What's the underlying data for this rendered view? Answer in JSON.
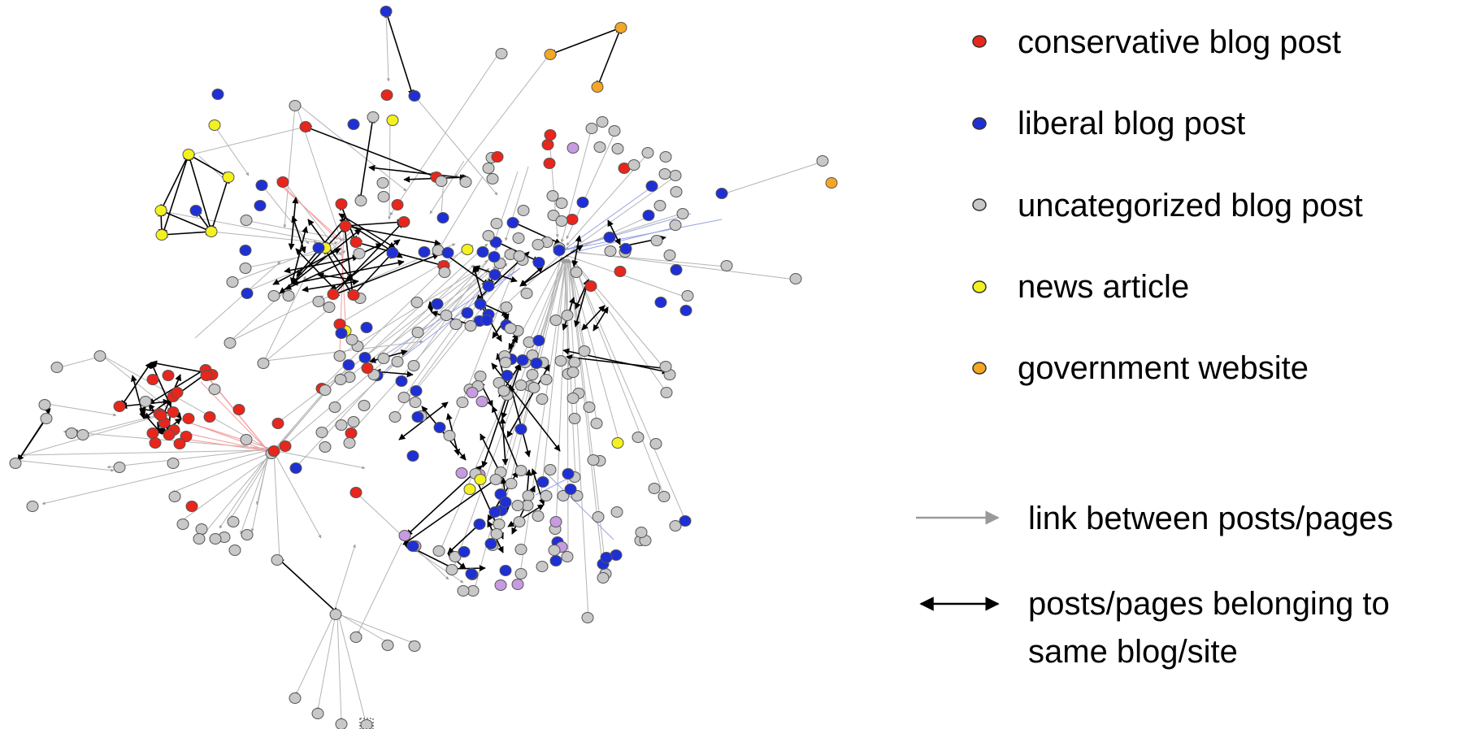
{
  "legend": {
    "node_types": [
      {
        "id": "conservative",
        "label": "conservative blog post",
        "color": "#e8261c"
      },
      {
        "id": "liberal",
        "label": "liberal blog post",
        "color": "#1f2fd6"
      },
      {
        "id": "uncategorized",
        "label": "uncategorized blog post",
        "color": "#c8c8c8"
      },
      {
        "id": "news",
        "label": "news article",
        "color": "#f4f21e"
      },
      {
        "id": "government",
        "label": "government website",
        "color": "#f5a623"
      }
    ],
    "extra_node_color": "#c79be0",
    "edge_types": [
      {
        "id": "link",
        "lines": [
          "link between posts/pages"
        ],
        "color": "#a0a0a0"
      },
      {
        "id": "same-site",
        "lines": [
          "posts/pages belonging to",
          "same blog/site"
        ],
        "color": "#000000"
      }
    ]
  }
}
